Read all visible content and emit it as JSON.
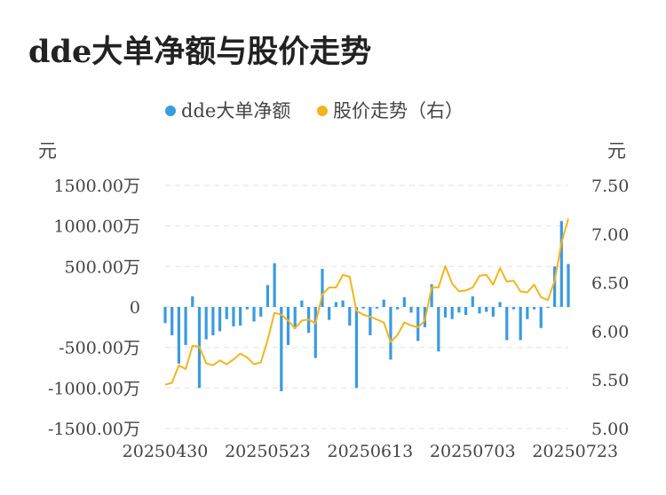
{
  "chart_data": {
    "type": "bar+line",
    "title": "dde大单净额与股价走势",
    "legend": [
      "dde大单净额",
      "股价走势（右）"
    ],
    "legend_position": "top-center",
    "y_left_unit": "元",
    "y_right_unit": "元",
    "y_left_ticks": [
      "1500.00万",
      "1000.00万",
      "500.00万",
      "0",
      "-500.00万",
      "-1000.00万",
      "-1500.00万"
    ],
    "y_right_ticks": [
      "7.50",
      "7.00",
      "6.50",
      "6.00",
      "5.50",
      "5.00"
    ],
    "y_left_range": [
      -1500,
      1500
    ],
    "y_right_range": [
      5.0,
      7.5
    ],
    "x_tick_labels": [
      "20250430",
      "20250523",
      "20250613",
      "20250703",
      "20250723"
    ],
    "x_tick_indices": [
      0,
      15,
      30,
      45,
      60
    ],
    "grid": true,
    "colors": {
      "bar": "#3a9be0",
      "line": "#f2b51c",
      "grid": "#e6e6e6"
    },
    "series": [
      {
        "name": "dde大单净额",
        "values": [
          -200,
          -350,
          -700,
          -470,
          130,
          -1000,
          -400,
          -350,
          -300,
          -150,
          -240,
          -230,
          -30,
          -180,
          -120,
          270,
          540,
          -1040,
          -470,
          -270,
          80,
          -320,
          -630,
          470,
          -160,
          60,
          80,
          -230,
          -1000,
          -20,
          -350,
          -20,
          90,
          -650,
          -30,
          120,
          -70,
          -420,
          -250,
          280,
          -550,
          -130,
          -150,
          -70,
          -100,
          130,
          -80,
          -60,
          -120,
          60,
          -410,
          -30,
          -410,
          -150,
          -30,
          -260,
          -10,
          500,
          1060,
          530
        ]
      },
      {
        "name": "股价走势（右）",
        "values": [
          5.45,
          5.47,
          5.65,
          5.61,
          5.85,
          5.84,
          5.67,
          5.65,
          5.7,
          5.66,
          5.71,
          5.77,
          5.73,
          5.66,
          5.68,
          5.91,
          6.19,
          6.17,
          6.11,
          6.03,
          6.11,
          6.12,
          6.08,
          6.38,
          6.45,
          6.45,
          6.58,
          6.56,
          6.21,
          6.17,
          6.15,
          6.12,
          6.09,
          5.89,
          5.96,
          6.09,
          6.06,
          6.04,
          6.11,
          6.45,
          6.45,
          6.67,
          6.49,
          6.41,
          6.42,
          6.45,
          6.57,
          6.58,
          6.48,
          6.65,
          6.51,
          6.52,
          6.41,
          6.4,
          6.48,
          6.35,
          6.32,
          6.52,
          6.91,
          7.16
        ]
      }
    ]
  }
}
